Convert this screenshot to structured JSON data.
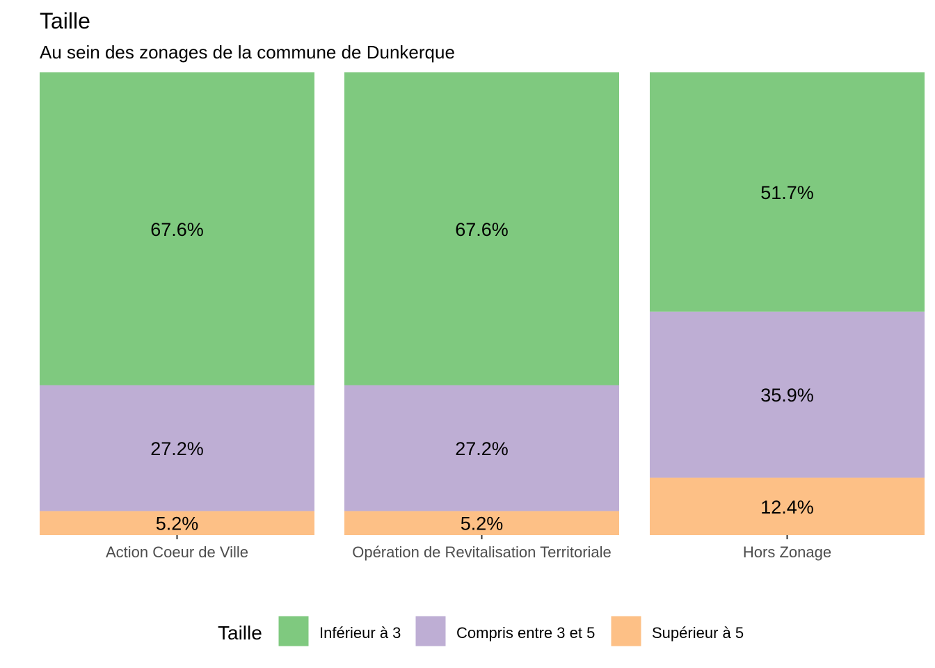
{
  "chart_data": {
    "type": "bar",
    "stacked": true,
    "normalized": true,
    "title": "Taille",
    "subtitle": "Au sein des zonages de la commune de Dunkerque",
    "categories": [
      "Action Coeur de Ville",
      "Opération de Revitalisation Territoriale",
      "Hors Zonage"
    ],
    "series": [
      {
        "name": "Inférieur à 3",
        "color": "#7FC97F",
        "values": [
          67.6,
          67.6,
          51.7
        ],
        "labels": [
          "67.6%",
          "67.6%",
          "51.7%"
        ]
      },
      {
        "name": "Compris entre 3 et 5",
        "color": "#BEAED4",
        "values": [
          27.2,
          27.2,
          35.9
        ],
        "labels": [
          "27.2%",
          "27.2%",
          "35.9%"
        ]
      },
      {
        "name": "Supérieur à 5",
        "color": "#FDC086",
        "values": [
          5.2,
          5.2,
          12.4
        ],
        "labels": [
          "5.2%",
          "5.2%",
          "12.4%"
        ]
      }
    ],
    "ylim": [
      0,
      100
    ],
    "grid": false,
    "legend": {
      "title": "Taille",
      "position": "bottom"
    }
  }
}
